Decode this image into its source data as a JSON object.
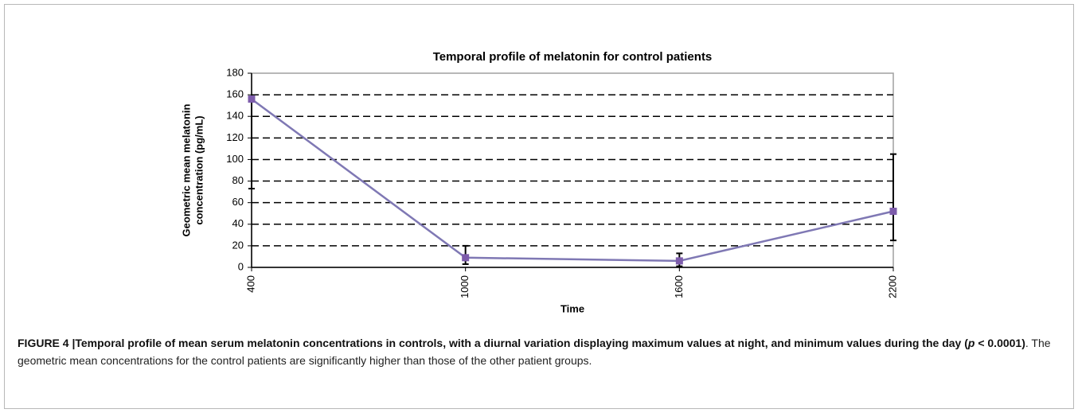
{
  "chart_data": {
    "type": "line",
    "title": "Temporal profile of melatonin for control patients",
    "x_label": "Time",
    "y_label": [
      "Geometric mean melatonin",
      "concentration (pg/mL)"
    ],
    "categories": [
      "400",
      "1000",
      "1600",
      "2200"
    ],
    "series": [
      {
        "name": "Controls",
        "color": "#7f78b4",
        "marker_color": "#7d5cab",
        "values": [
          156,
          9,
          6,
          52
        ],
        "error_bars": [
          [
            73,
            null
          ],
          [
            3,
            20
          ],
          [
            1,
            13
          ],
          [
            25,
            105
          ]
        ]
      }
    ],
    "ylim": [
      0,
      180
    ],
    "yticks": [
      0,
      20,
      40,
      60,
      80,
      100,
      120,
      140,
      160,
      180
    ],
    "grid": true
  },
  "caption": {
    "label": "FIGURE 4 |",
    "bold": "Temporal profile of mean serum melatonin concentrations in controls, with a diurnal variation displaying maximum values at night, and minimum values during the day (",
    "italic": "p",
    "bold_end": " < 0.0001)",
    "text": ". The geometric mean concentrations for the control patients are significantly higher than those of the other patient groups."
  }
}
